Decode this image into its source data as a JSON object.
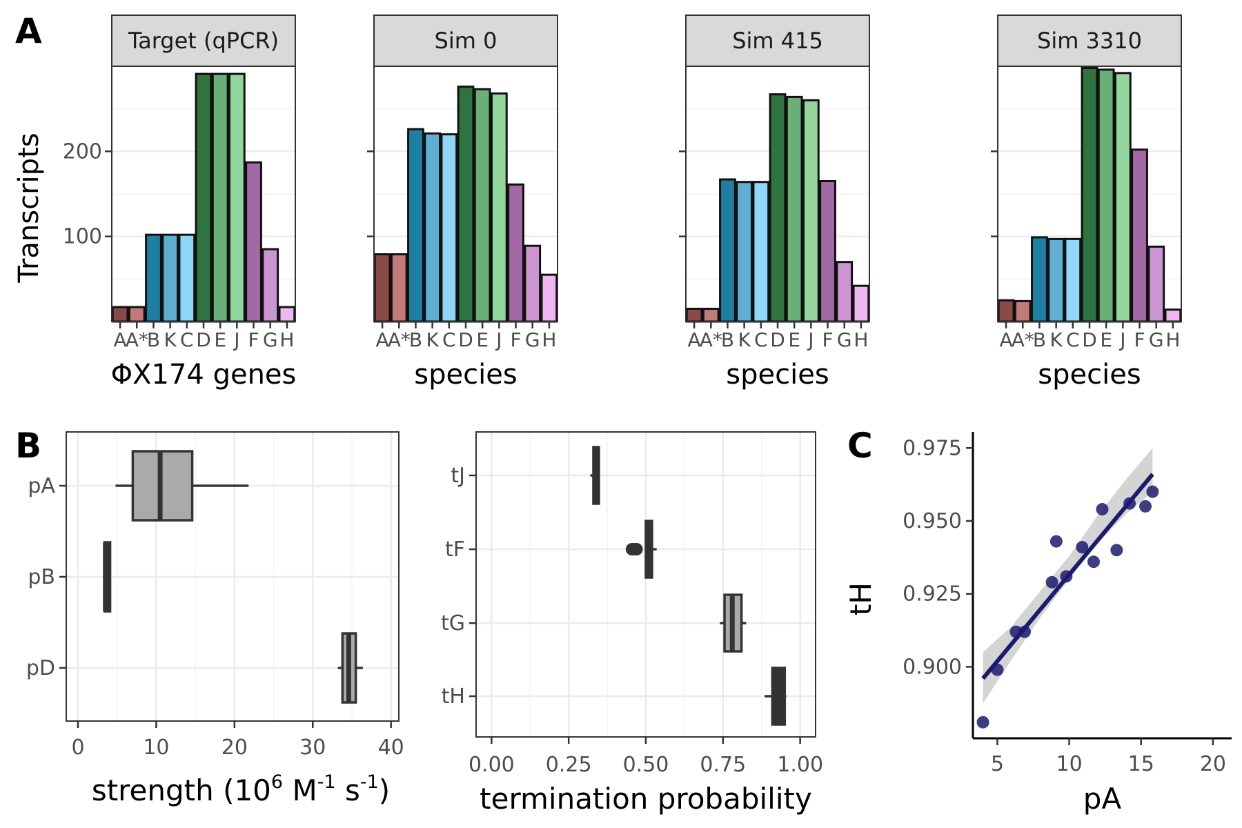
{
  "panel_labels": [
    "A",
    "B",
    "C"
  ],
  "colors": {
    "AA*": [
      "#8B4A47",
      "#C27B78"
    ],
    "BKC": [
      "#1F7FA3",
      "#5FAED4",
      "#8FD6F7"
    ],
    "DEJ": [
      "#2F7340",
      "#6AAF78",
      "#93D69E"
    ],
    "FGH": [
      "#A269A6",
      "#CB95D1",
      "#EFB7F2"
    ],
    "grid": "#ebebeb",
    "strip": "#d9d9d9",
    "box_light": "#aaaaaa",
    "line_dark": "#333333",
    "fit_line": "#1b1b6e",
    "ci_band": "#bdbdbd",
    "points": "#1b1b6e"
  },
  "chart_data": [
    {
      "id": "A",
      "type": "bar",
      "ylabel": "Transcripts",
      "ylim": [
        0,
        300
      ],
      "yticks": [
        100,
        200
      ],
      "ytick_labels": [
        "100",
        "200"
      ],
      "categories": [
        "A",
        "A*",
        "B",
        "K",
        "C",
        "D",
        "E",
        "J",
        "F",
        "G",
        "H"
      ],
      "tick_labels": [
        "A",
        "A*",
        "B",
        "K",
        "C",
        "D",
        "E",
        "J",
        "F",
        "G",
        "H"
      ],
      "facets": [
        {
          "title": "Target (qPCR)",
          "xlabel": "ΦX174 genes",
          "values": [
            17,
            17,
            102,
            102,
            102,
            291,
            291,
            291,
            187,
            85,
            17
          ]
        },
        {
          "title": "Sim  0",
          "xlabel": "species",
          "values": [
            79,
            79,
            226,
            221,
            220,
            276,
            273,
            268,
            161,
            89,
            55
          ]
        },
        {
          "title": "Sim  415",
          "xlabel": "species",
          "values": [
            15,
            15,
            167,
            164,
            164,
            267,
            264,
            260,
            165,
            70,
            42
          ]
        },
        {
          "title": "Sim  3310",
          "xlabel": "species",
          "values": [
            25,
            24,
            99,
            97,
            97,
            298,
            296,
            292,
            202,
            88,
            14
          ]
        }
      ]
    },
    {
      "id": "B1",
      "type": "box",
      "orientation": "horizontal",
      "xlabel": "strength (10",
      "xlabel_parts": [
        "strength (10",
        "6",
        " M",
        "-1",
        " s",
        "-1",
        ")"
      ],
      "xlim": [
        -1.5,
        41
      ],
      "xticks": [
        0,
        10,
        20,
        30,
        40
      ],
      "xtick_labels": [
        "0",
        "10",
        "20",
        "30",
        "40"
      ],
      "categories": [
        "pA",
        "pB",
        "pD"
      ],
      "boxes": [
        {
          "name": "pA",
          "whisker_low": 4.8,
          "q1": 7.0,
          "median": 10.5,
          "q3": 14.6,
          "whisker_high": 21.8,
          "fill": "#aaaaaa",
          "outliers": []
        },
        {
          "name": "pB",
          "whisker_low": 3.4,
          "q1": 3.4,
          "median": 3.5,
          "q3": 3.6,
          "whisker_high": 3.6,
          "fill": "#333333",
          "outliers": []
        },
        {
          "name": "pD",
          "whisker_low": 33.2,
          "q1": 33.8,
          "median": 34.6,
          "q3": 35.5,
          "whisker_high": 36.4,
          "fill": "#aaaaaa",
          "outliers": []
        }
      ]
    },
    {
      "id": "B2",
      "type": "box",
      "orientation": "horizontal",
      "xlabel": "termination probability",
      "xlim": [
        -0.05,
        1.05
      ],
      "xticks": [
        0.0,
        0.25,
        0.5,
        0.75,
        1.0
      ],
      "xtick_labels": [
        "0.00",
        "0.25",
        "0.50",
        "0.75",
        "1.00"
      ],
      "categories": [
        "tJ",
        "tF",
        "tG",
        "tH"
      ],
      "boxes": [
        {
          "name": "tJ",
          "whisker_low": 0.32,
          "q1": 0.33,
          "median": 0.335,
          "q3": 0.345,
          "whisker_high": 0.35,
          "fill": "#333333",
          "outliers": []
        },
        {
          "name": "tF",
          "whisker_low": 0.5,
          "q1": 0.5,
          "median": 0.51,
          "q3": 0.52,
          "whisker_high": 0.535,
          "fill": "#333333",
          "outliers": [
            0.455,
            0.462,
            0.47
          ]
        },
        {
          "name": "tG",
          "whisker_low": 0.74,
          "q1": 0.755,
          "median": 0.78,
          "q3": 0.81,
          "whisker_high": 0.825,
          "fill": "#aaaaaa",
          "outliers": []
        },
        {
          "name": "tH",
          "whisker_low": 0.885,
          "q1": 0.91,
          "median": 0.935,
          "q3": 0.95,
          "whisker_high": 0.955,
          "fill": "#333333",
          "outliers": []
        }
      ]
    },
    {
      "id": "C",
      "type": "scatter",
      "xlabel": "pA",
      "ylabel": "tH",
      "xlim": [
        3.3,
        21.3
      ],
      "ylim": [
        0.8755,
        0.9805
      ],
      "xticks": [
        5,
        10,
        15,
        20
      ],
      "xtick_labels": [
        "5",
        "10",
        "15",
        "20"
      ],
      "yticks": [
        0.9,
        0.925,
        0.95,
        0.975
      ],
      "ytick_labels": [
        "0.900",
        "0.925",
        "0.950",
        "0.975"
      ],
      "points": [
        {
          "x": 4.0,
          "y": 0.881
        },
        {
          "x": 5.0,
          "y": 0.899
        },
        {
          "x": 6.3,
          "y": 0.912
        },
        {
          "x": 6.9,
          "y": 0.912
        },
        {
          "x": 8.8,
          "y": 0.929
        },
        {
          "x": 9.1,
          "y": 0.943
        },
        {
          "x": 9.8,
          "y": 0.931
        },
        {
          "x": 10.9,
          "y": 0.941
        },
        {
          "x": 11.7,
          "y": 0.936
        },
        {
          "x": 12.3,
          "y": 0.954
        },
        {
          "x": 13.3,
          "y": 0.94
        },
        {
          "x": 14.2,
          "y": 0.956
        },
        {
          "x": 15.3,
          "y": 0.955
        },
        {
          "x": 15.8,
          "y": 0.96
        }
      ],
      "fit": {
        "x": [
          4.0,
          15.8
        ],
        "y": [
          0.896,
          0.966
        ]
      },
      "ci_band": {
        "x": [
          4.0,
          6.0,
          8.0,
          10.0,
          12.0,
          14.0,
          15.8
        ],
        "lower": [
          0.8875,
          0.9025,
          0.917,
          0.93,
          0.9425,
          0.9525,
          0.96
        ],
        "upper": [
          0.905,
          0.914,
          0.926,
          0.938,
          0.952,
          0.9645,
          0.975
        ]
      }
    }
  ]
}
